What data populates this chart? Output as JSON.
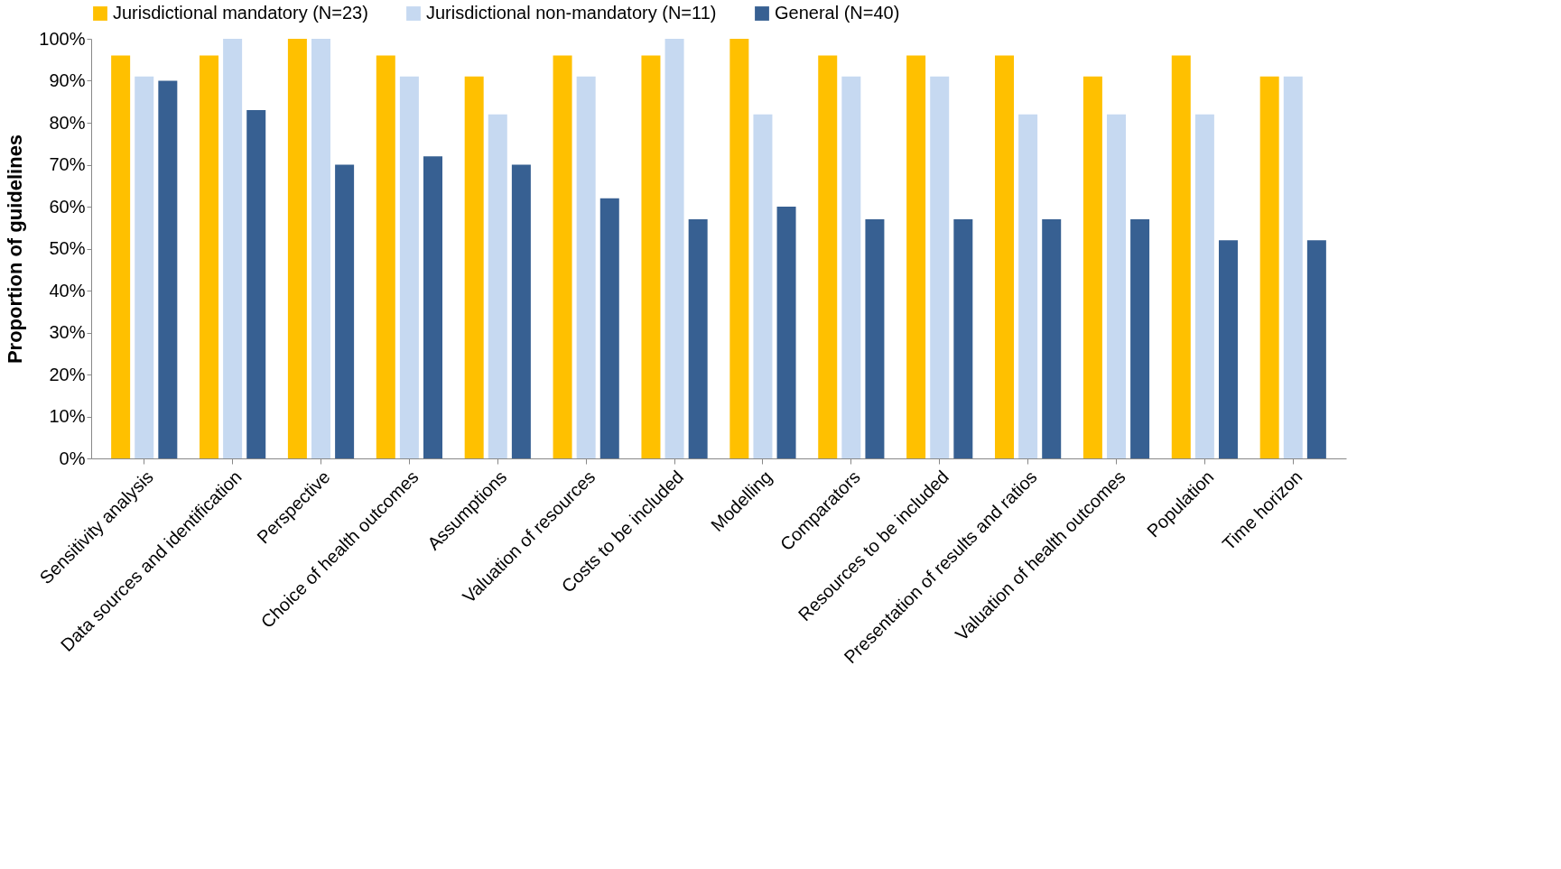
{
  "chart_data": {
    "type": "bar",
    "ylabel": "Proportion of guidelines",
    "categories": [
      "Sensitivity analysis",
      "Data sources and identification",
      "Perspective",
      "Choice of health outcomes",
      "Assumptions",
      "Valuation of resources",
      "Costs to be included",
      "Modelling",
      "Comparators",
      "Resources to be included",
      "Presentation of results and ratios",
      "Valuation of health outcomes",
      "Population",
      "Time horizon"
    ],
    "series": [
      {
        "name": "Jurisdictional mandatory (N=23)",
        "color": "#ffc000",
        "values": [
          96,
          96,
          100,
          96,
          91,
          96,
          96,
          100,
          96,
          96,
          96,
          91,
          96,
          91
        ]
      },
      {
        "name": "Jurisdictional non-mandatory (N=11)",
        "color": "#c6d9f1",
        "values": [
          91,
          100,
          100,
          91,
          82,
          91,
          100,
          82,
          91,
          91,
          82,
          82,
          82,
          91
        ]
      },
      {
        "name": "General (N=40)",
        "color": "#376092",
        "values": [
          90,
          83,
          70,
          72,
          70,
          62,
          57,
          60,
          57,
          57,
          57,
          57,
          52,
          52
        ]
      }
    ],
    "ylim": [
      0,
      100
    ],
    "yticks": [
      {
        "value": 0,
        "label": "0%"
      },
      {
        "value": 10,
        "label": "10%"
      },
      {
        "value": 20,
        "label": "20%"
      },
      {
        "value": 30,
        "label": "30%"
      },
      {
        "value": 40,
        "label": "40%"
      },
      {
        "value": 50,
        "label": "50%"
      },
      {
        "value": 60,
        "label": "60%"
      },
      {
        "value": 70,
        "label": "70%"
      },
      {
        "value": 80,
        "label": "80%"
      },
      {
        "value": 90,
        "label": "90%"
      },
      {
        "value": 100,
        "label": "100%"
      }
    ],
    "grid": false,
    "legend": "top"
  }
}
